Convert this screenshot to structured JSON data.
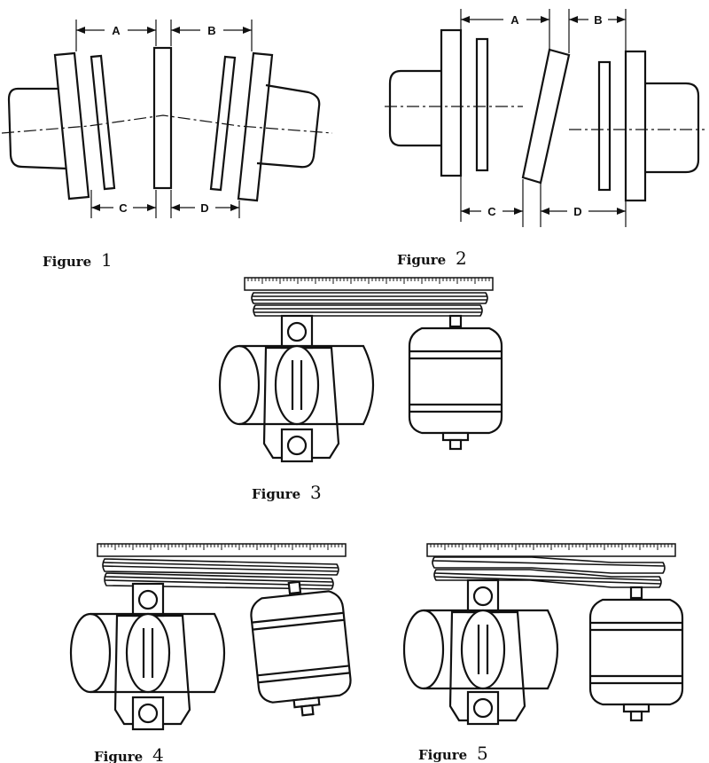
{
  "figures": [
    {
      "id": "figure-1",
      "word": "Figure",
      "number": "1"
    },
    {
      "id": "figure-2",
      "word": "Figure",
      "number": "2"
    },
    {
      "id": "figure-3",
      "word": "Figure",
      "number": "3"
    },
    {
      "id": "figure-4",
      "word": "Figure",
      "number": "4"
    },
    {
      "id": "figure-5",
      "word": "Figure",
      "number": "5"
    }
  ],
  "dimension_labels": {
    "a": "A",
    "b": "B",
    "c": "C",
    "d": "D"
  },
  "figure_meaning": {
    "figure-1": "angular misalignment of coupling halves",
    "figure-2": "parallel offset misalignment of coupling halves",
    "figure-3": "pulleys aligned with straightedge",
    "figure-4": "motor tilted relative to straightedge",
    "figure-5": "pulleys offset from straightedge"
  }
}
